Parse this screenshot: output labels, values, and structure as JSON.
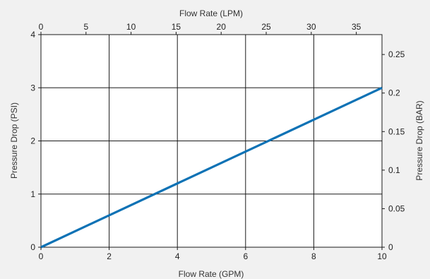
{
  "chart_data": {
    "type": "line",
    "x_bottom": {
      "label": "Flow Rate  (GPM)",
      "range": [
        0,
        10
      ],
      "ticks": [
        0,
        2,
        4,
        6,
        8,
        10
      ]
    },
    "x_top": {
      "label": "Flow Rate  (LPM)",
      "range": [
        0,
        37.85
      ],
      "ticks": [
        0,
        5,
        10,
        15,
        20,
        25,
        30,
        35
      ]
    },
    "y_left": {
      "label": "Pressure Drop (PSI)",
      "range": [
        0,
        4
      ],
      "ticks": [
        0,
        1,
        2,
        3,
        4
      ]
    },
    "y_right": {
      "label": "Pressure Drop (BAR)",
      "range": [
        0,
        0.2758
      ],
      "ticks": [
        "0",
        "0.05",
        "0.1",
        "0.15",
        "0.2",
        "0.25"
      ]
    },
    "grid": true,
    "grid_x": [
      2,
      4,
      6,
      8
    ],
    "grid_y": [
      1,
      2,
      3
    ],
    "series": [
      {
        "x": [
          0,
          10
        ],
        "y": [
          0,
          3
        ],
        "color": "#0e72b5"
      }
    ]
  }
}
